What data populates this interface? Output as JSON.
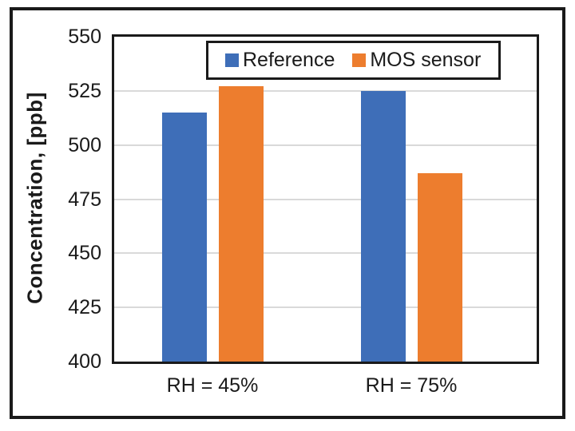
{
  "figure": {
    "background": "#ffffff",
    "border_color": "#1a1a1a"
  },
  "chart_data": {
    "type": "bar",
    "title": "",
    "xlabel": "",
    "ylabel": "Concentration, [ppb]",
    "categories": [
      "RH = 45%",
      "RH = 75%"
    ],
    "series": [
      {
        "name": "Reference",
        "color": "#3E6EB8",
        "values": [
          515,
          525
        ]
      },
      {
        "name": "MOS sensor",
        "color": "#ED7D2E",
        "values": [
          527,
          487
        ]
      }
    ],
    "ylim": [
      400,
      550
    ],
    "ytick_step": 25,
    "yticks": [
      400,
      425,
      450,
      475,
      500,
      525,
      550
    ],
    "grid": "horizontal",
    "gridline_color": "#d9d9d9",
    "axis_color": "#1a1a1a",
    "legend_position": "top-inside"
  }
}
